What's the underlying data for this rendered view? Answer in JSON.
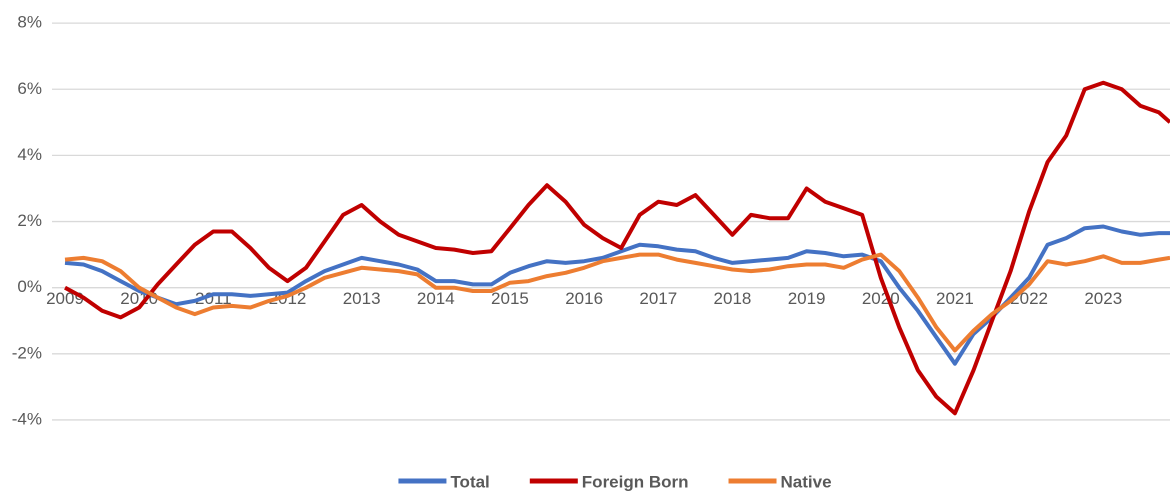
{
  "chart_data": {
    "type": "line",
    "x": [
      2009,
      2009.25,
      2009.5,
      2009.75,
      2010,
      2010.25,
      2010.5,
      2010.75,
      2011,
      2011.25,
      2011.5,
      2011.75,
      2012,
      2012.25,
      2012.5,
      2012.75,
      2013,
      2013.25,
      2013.5,
      2013.75,
      2014,
      2014.25,
      2014.5,
      2014.75,
      2015,
      2015.25,
      2015.5,
      2015.75,
      2016,
      2016.25,
      2016.5,
      2016.75,
      2017,
      2017.25,
      2017.5,
      2017.75,
      2018,
      2018.25,
      2018.5,
      2018.75,
      2019,
      2019.25,
      2019.5,
      2019.75,
      2020,
      2020.25,
      2020.5,
      2020.75,
      2021,
      2021.25,
      2021.5,
      2021.75,
      2022,
      2022.25,
      2022.5,
      2022.75,
      2023,
      2023.25,
      2023.5,
      2023.75,
      2023.9
    ],
    "series": [
      {
        "name": "Total",
        "color": "#4472c4",
        "values": [
          0.75,
          0.7,
          0.5,
          0.2,
          -0.1,
          -0.3,
          -0.5,
          -0.4,
          -0.2,
          -0.2,
          -0.25,
          -0.2,
          -0.15,
          0.2,
          0.5,
          0.7,
          0.9,
          0.8,
          0.7,
          0.55,
          0.2,
          0.2,
          0.1,
          0.1,
          0.45,
          0.65,
          0.8,
          0.75,
          0.8,
          0.9,
          1.1,
          1.3,
          1.25,
          1.15,
          1.1,
          0.9,
          0.75,
          0.8,
          0.85,
          0.9,
          1.1,
          1.05,
          0.95,
          1.0,
          0.8,
          0.0,
          -0.7,
          -1.5,
          -2.3,
          -1.4,
          -0.9,
          -0.3,
          0.3,
          1.3,
          1.5,
          1.8,
          1.85,
          1.7,
          1.6,
          1.65,
          1.65
        ]
      },
      {
        "name": "Foreign Born",
        "color": "#c00000",
        "values": [
          0.0,
          -0.3,
          -0.7,
          -0.9,
          -0.6,
          0.1,
          0.7,
          1.3,
          1.7,
          1.7,
          1.2,
          0.6,
          0.2,
          0.6,
          1.4,
          2.2,
          2.5,
          2.0,
          1.6,
          1.4,
          1.2,
          1.15,
          1.05,
          1.1,
          1.8,
          2.5,
          3.1,
          2.6,
          1.9,
          1.5,
          1.2,
          2.2,
          2.6,
          2.5,
          2.8,
          2.2,
          1.6,
          2.2,
          2.1,
          2.1,
          3.0,
          2.6,
          2.4,
          2.2,
          0.3,
          -1.2,
          -2.5,
          -3.3,
          -3.8,
          -2.5,
          -1.0,
          0.5,
          2.3,
          3.8,
          4.6,
          6.0,
          6.2,
          6.0,
          5.5,
          5.3,
          5.0
        ]
      },
      {
        "name": "Native",
        "color": "#ed7d31",
        "values": [
          0.85,
          0.9,
          0.8,
          0.5,
          0.0,
          -0.3,
          -0.6,
          -0.8,
          -0.6,
          -0.55,
          -0.6,
          -0.4,
          -0.25,
          0.0,
          0.3,
          0.45,
          0.6,
          0.55,
          0.5,
          0.4,
          0.0,
          0.0,
          -0.1,
          -0.1,
          0.15,
          0.2,
          0.35,
          0.45,
          0.6,
          0.8,
          0.9,
          1.0,
          1.0,
          0.85,
          0.75,
          0.65,
          0.55,
          0.5,
          0.55,
          0.65,
          0.7,
          0.7,
          0.6,
          0.85,
          1.0,
          0.5,
          -0.3,
          -1.2,
          -1.9,
          -1.3,
          -0.8,
          -0.4,
          0.1,
          0.8,
          0.7,
          0.8,
          0.95,
          0.75,
          0.75,
          0.85,
          0.9
        ]
      }
    ],
    "xlim": [
      2009,
      2023.9
    ],
    "xticks": [
      2009,
      2010,
      2011,
      2012,
      2013,
      2014,
      2015,
      2016,
      2017,
      2018,
      2019,
      2020,
      2021,
      2022,
      2023
    ],
    "ylim": [
      -5,
      8.7
    ],
    "yticks": [
      {
        "value": -4,
        "label": "-4%"
      },
      {
        "value": -2,
        "label": "-2%"
      },
      {
        "value": 0,
        "label": "0%"
      },
      {
        "value": 2,
        "label": "2%"
      },
      {
        "value": 4,
        "label": "4%"
      },
      {
        "value": 6,
        "label": "6%"
      },
      {
        "value": 8,
        "label": "8%"
      }
    ],
    "grid": true,
    "legend": "bottom"
  }
}
